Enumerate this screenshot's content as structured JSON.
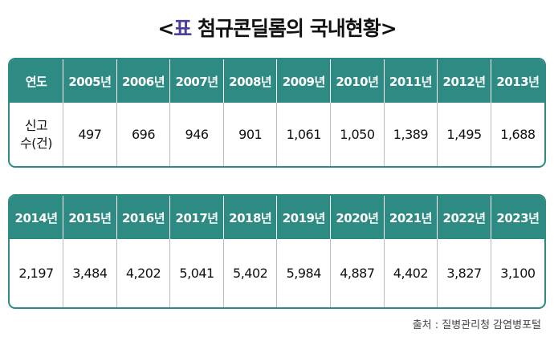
{
  "title": {
    "open": "<",
    "label": "표",
    "text": "첨규콘딜롬의 국내현황",
    "close": ">"
  },
  "tables": [
    {
      "header": [
        "연도",
        "2005년",
        "2006년",
        "2007년",
        "2008년",
        "2009년",
        "2010년",
        "2011년",
        "2012년",
        "2013년"
      ],
      "row": [
        "신고 수(건)",
        "497",
        "696",
        "946",
        "901",
        "1,061",
        "1,050",
        "1,389",
        "1,495",
        "1,688"
      ]
    },
    {
      "header": [
        "2014년",
        "2015년",
        "2016년",
        "2017년",
        "2018년",
        "2019년",
        "2020년",
        "2021년",
        "2022년",
        "2023년"
      ],
      "row": [
        "2,197",
        "3,484",
        "4,202",
        "5,041",
        "5,402",
        "5,984",
        "4,887",
        "4,402",
        "3,827",
        "3,100"
      ]
    }
  ],
  "source": "출처 : 질병관리청 감염병포털"
}
